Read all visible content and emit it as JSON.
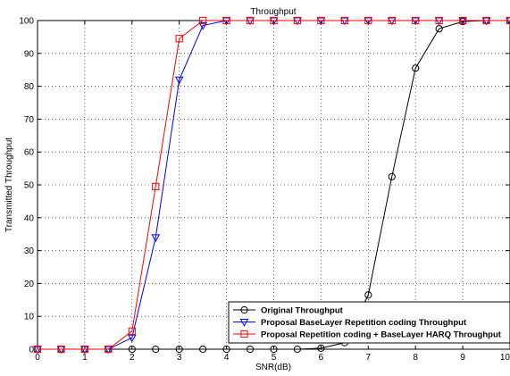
{
  "chart_data": {
    "type": "line",
    "title": "Throughput",
    "xlabel": "SNR(dB)",
    "ylabel": "Transmitted Throughput",
    "xlim": [
      0,
      10
    ],
    "ylim": [
      0,
      100
    ],
    "xticks": [
      0,
      1,
      2,
      3,
      4,
      5,
      6,
      7,
      8,
      9,
      10
    ],
    "yticks": [
      0,
      10,
      20,
      30,
      40,
      50,
      60,
      70,
      80,
      90,
      100
    ],
    "grid": true,
    "legend_position": "bottom-right",
    "x": [
      0,
      0.5,
      1,
      1.5,
      2,
      2.5,
      3,
      3.5,
      4,
      4.5,
      5,
      5.5,
      6,
      6.5,
      7,
      7.5,
      8,
      8.5,
      9,
      9.5,
      10
    ],
    "series": [
      {
        "name": "Original Throughput",
        "color": "#000000",
        "marker": "circle",
        "values": [
          0,
          0,
          0,
          0,
          0,
          0,
          0,
          0,
          0,
          0,
          0,
          0,
          0.3,
          2,
          16.5,
          52.5,
          85.5,
          97.5,
          99.7,
          100,
          100
        ]
      },
      {
        "name": "Proposal BaseLayer Repetition coding Throughput",
        "color": "#0000ff",
        "marker": "triangle-down",
        "values": [
          0,
          0,
          0,
          0,
          3.5,
          34,
          82,
          98.5,
          100,
          100,
          100,
          100,
          100,
          100,
          100,
          100,
          100,
          100,
          100,
          100,
          100
        ]
      },
      {
        "name": "Proposal Repetition coding + BaseLayer HARQ Throughput",
        "color": "#ff0000",
        "marker": "square",
        "values": [
          0,
          0,
          0,
          0,
          5.5,
          49.5,
          94.5,
          100,
          100,
          100,
          100,
          100,
          100,
          100,
          100,
          100,
          100,
          100,
          100,
          100,
          100
        ]
      }
    ]
  }
}
